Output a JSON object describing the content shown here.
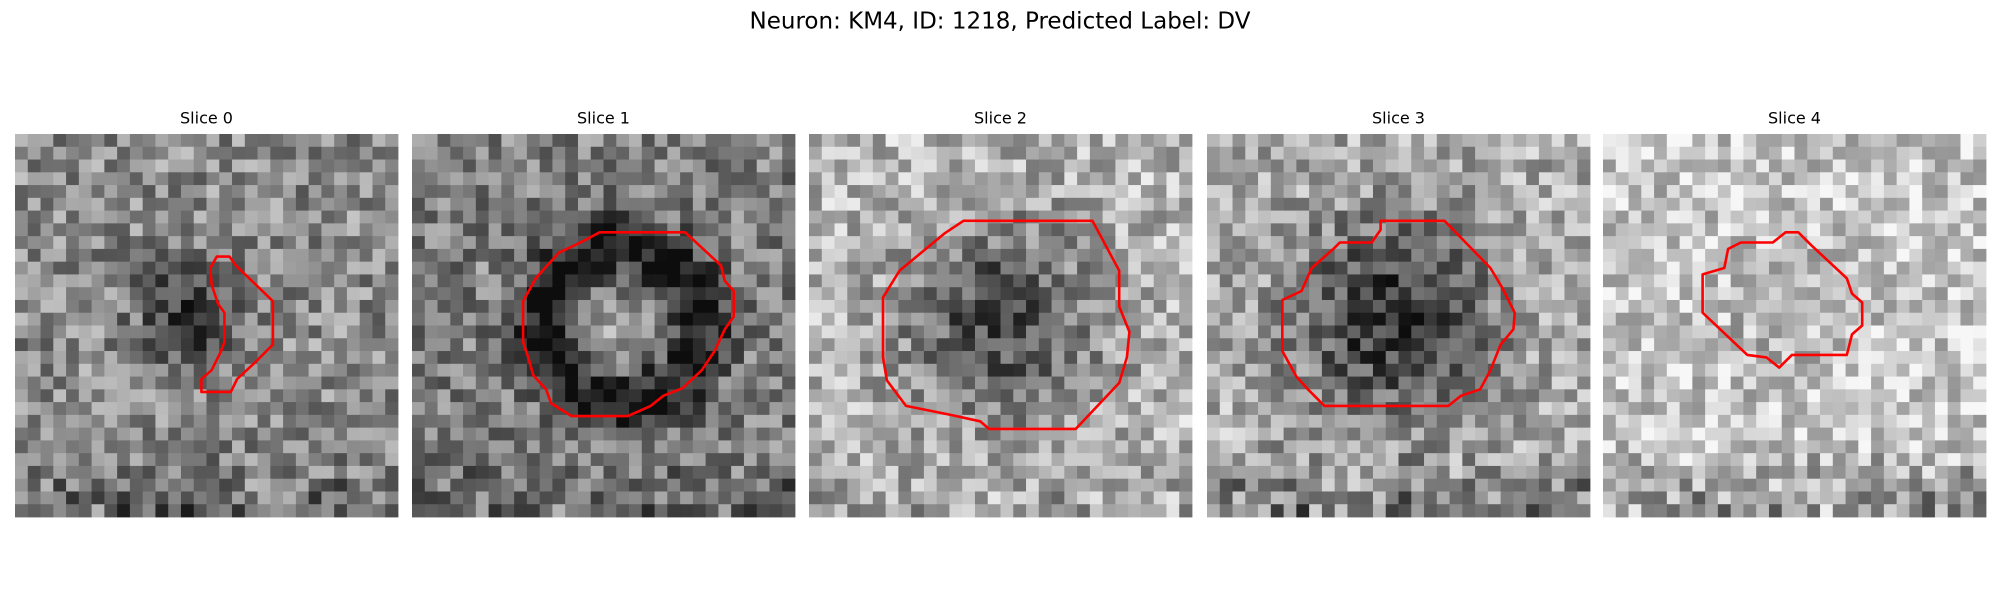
{
  "title": "Neuron: KM4, ID: 1218, Predicted Label: DV",
  "panels": [
    {
      "title": "Slice 0"
    },
    {
      "title": "Slice 1"
    },
    {
      "title": "Slice 2"
    },
    {
      "title": "Slice 3"
    },
    {
      "title": "Slice 4"
    }
  ]
}
